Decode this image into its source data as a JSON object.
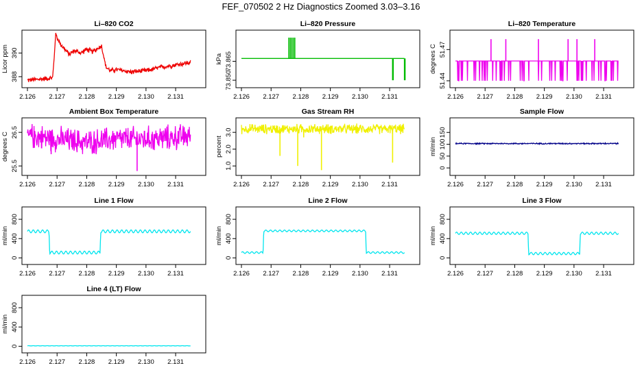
{
  "title": "FEF_070502  2 Hz Diagnostics Zoomed 3.03–3.16",
  "colors": {
    "red": "#ee0000",
    "green": "#00bb00",
    "magenta": "#ee00ee",
    "yellow": "#f0f000",
    "navy": "#000088",
    "cyan": "#00e5ee"
  },
  "chart_data": [
    {
      "id": "co2",
      "type": "line",
      "title": "Li–820 CO2",
      "ylabel": "Licor ppm",
      "xlim": [
        2.126,
        2.1316
      ],
      "ylim": [
        387.3,
        391.7
      ],
      "x_ticks": [
        "2.126",
        "2.127",
        "2.128",
        "2.129",
        "2.130",
        "2.131"
      ],
      "x_tick_values": [
        2.126,
        2.127,
        2.128,
        2.129,
        2.13,
        2.131
      ],
      "y_ticks": [
        "388",
        "390"
      ],
      "y_tick_values": [
        388,
        390
      ],
      "series": [
        {
          "color": "red",
          "x": [
            2.126,
            2.1265,
            2.12685,
            2.1269,
            2.12695,
            2.1271,
            2.1274,
            2.1276,
            2.1278,
            2.128,
            2.1282,
            2.1285,
            2.12865,
            2.1288,
            2.129,
            2.1295,
            2.13,
            2.1305,
            2.131,
            2.1315
          ],
          "y": [
            387.7,
            387.8,
            387.9,
            389.5,
            391.6,
            390.8,
            389.9,
            390.2,
            390.0,
            390.3,
            390.1,
            390.6,
            388.8,
            388.5,
            388.6,
            388.4,
            388.5,
            388.8,
            389.0,
            389.2
          ],
          "noise": 0.25
        }
      ]
    },
    {
      "id": "pressure",
      "type": "line",
      "title": "Li–820 Pressure",
      "ylabel": "kPa",
      "xlim": [
        2.126,
        2.1316
      ],
      "ylim": [
        73.845,
        73.9
      ],
      "x_ticks": [
        "2.126",
        "2.127",
        "2.128",
        "2.129",
        "2.130",
        "2.131"
      ],
      "x_tick_values": [
        2.126,
        2.127,
        2.128,
        2.129,
        2.13,
        2.131
      ],
      "y_ticks": [
        "73.850",
        "73.865"
      ],
      "y_tick_values": [
        73.85,
        73.87
      ],
      "series": [
        {
          "color": "green",
          "x": [
            2.126,
            2.1315
          ],
          "y": [
            73.873,
            73.873
          ],
          "noise": 0,
          "spikes": [
            {
              "x": 2.1276,
              "y": 73.895
            },
            {
              "x": 2.12765,
              "y": 73.895
            },
            {
              "x": 2.1277,
              "y": 73.895
            },
            {
              "x": 2.12775,
              "y": 73.895
            },
            {
              "x": 2.1278,
              "y": 73.895
            },
            {
              "x": 2.1311,
              "y": 73.85
            },
            {
              "x": 2.13112,
              "y": 73.85
            },
            {
              "x": 2.1315,
              "y": 73.85
            },
            {
              "x": 2.13152,
              "y": 73.85
            }
          ]
        }
      ]
    },
    {
      "id": "licor-temp",
      "type": "line",
      "title": "Li–820 Temperature",
      "ylabel": "degrees C",
      "xlim": [
        2.126,
        2.1316
      ],
      "ylim": [
        51.436,
        51.486
      ],
      "x_ticks": [
        "2.126",
        "2.127",
        "2.128",
        "2.129",
        "2.130",
        "2.131"
      ],
      "x_tick_values": [
        2.126,
        2.127,
        2.128,
        2.129,
        2.13,
        2.131
      ],
      "y_ticks": [
        "51.44",
        "51.47"
      ],
      "y_tick_values": [
        51.44,
        51.47
      ],
      "series": [
        {
          "color": "magenta",
          "x": [
            2.126,
            2.1315
          ],
          "y": [
            51.459,
            51.459
          ],
          "noise": 0,
          "dropouts": 60,
          "drop_to": 51.44,
          "spikes_up": [
            2.1272,
            2.1277,
            2.1288,
            2.1298,
            2.1301,
            2.1307
          ],
          "spike_to": 51.48
        }
      ]
    },
    {
      "id": "box-temp",
      "type": "line",
      "title": "Ambient Box Temperature",
      "ylabel": "degrees C",
      "xlim": [
        2.126,
        2.1316
      ],
      "ylim": [
        25.3,
        26.85
      ],
      "x_ticks": [
        "2.126",
        "2.127",
        "2.128",
        "2.129",
        "2.130",
        "2.131"
      ],
      "x_tick_values": [
        2.126,
        2.127,
        2.128,
        2.129,
        2.13,
        2.131
      ],
      "y_ticks": [
        "25.5",
        "26.5"
      ],
      "y_tick_values": [
        25.5,
        26.5
      ],
      "series": [
        {
          "color": "magenta",
          "x": [
            2.126,
            2.127,
            2.128,
            2.129,
            2.13,
            2.131,
            2.1315
          ],
          "y": [
            26.4,
            26.3,
            26.2,
            26.3,
            26.3,
            26.35,
            26.4
          ],
          "noise": 0.45,
          "spikes": [
            {
              "x": 2.1297,
              "y": 25.35
            },
            {
              "x": 2.1268,
              "y": 25.85
            }
          ]
        }
      ]
    },
    {
      "id": "rh",
      "type": "line",
      "title": "Gas Stream RH",
      "ylabel": "percent",
      "xlim": [
        2.126,
        2.1316
      ],
      "ylim": [
        0.6,
        3.7
      ],
      "x_ticks": [
        "2.126",
        "2.127",
        "2.128",
        "2.129",
        "2.130",
        "2.131"
      ],
      "x_tick_values": [
        2.126,
        2.127,
        2.128,
        2.129,
        2.13,
        2.131
      ],
      "y_ticks": [
        "1.0",
        "2.0",
        "3.0"
      ],
      "y_tick_values": [
        1.0,
        2.0,
        3.0
      ],
      "series": [
        {
          "color": "yellow",
          "x": [
            2.126,
            2.1315
          ],
          "y": [
            3.2,
            3.2
          ],
          "noise": 0.35,
          "spikes": [
            {
              "x": 2.1273,
              "y": 1.6
            },
            {
              "x": 2.1279,
              "y": 1.0
            },
            {
              "x": 2.1287,
              "y": 0.75
            },
            {
              "x": 2.1311,
              "y": 1.2
            },
            {
              "x": 2.1281,
              "y": 2.7
            }
          ]
        }
      ]
    },
    {
      "id": "sample-flow",
      "type": "line",
      "title": "Sample Flow",
      "ylabel": "ml/min",
      "xlim": [
        2.126,
        2.1316
      ],
      "ylim": [
        -20,
        200
      ],
      "x_ticks": [
        "2.126",
        "2.127",
        "2.128",
        "2.129",
        "2.130",
        "2.131"
      ],
      "x_tick_values": [
        2.126,
        2.127,
        2.128,
        2.129,
        2.13,
        2.131
      ],
      "y_ticks": [
        "0",
        "50",
        "100",
        "150"
      ],
      "y_tick_values": [
        0,
        50,
        100,
        150
      ],
      "series": [
        {
          "color": "navy",
          "x": [
            2.126,
            2.1315
          ],
          "y": [
            103,
            103
          ],
          "noise": 3
        }
      ]
    },
    {
      "id": "line1",
      "type": "line",
      "title": "Line 1 Flow",
      "ylabel": "ml/min",
      "xlim": [
        2.126,
        2.1316
      ],
      "ylim": [
        -80,
        1000
      ],
      "x_ticks": [
        "2.126",
        "2.127",
        "2.128",
        "2.129",
        "2.130",
        "2.131"
      ],
      "x_tick_values": [
        2.126,
        2.127,
        2.128,
        2.129,
        2.13,
        2.131
      ],
      "y_ticks": [
        "0",
        "400",
        "800"
      ],
      "y_tick_values": [
        0,
        400,
        800
      ],
      "series": [
        {
          "color": "cyan",
          "x": [
            2.126,
            2.12673,
            2.12675,
            2.12845,
            2.12847,
            2.1315
          ],
          "y": [
            550,
            550,
            110,
            110,
            550,
            550
          ],
          "wave": 30
        }
      ]
    },
    {
      "id": "line2",
      "type": "line",
      "title": "Line 2 Flow",
      "ylabel": "ml/min",
      "xlim": [
        2.126,
        2.1316
      ],
      "ylim": [
        -80,
        1000
      ],
      "x_ticks": [
        "2.126",
        "2.127",
        "2.128",
        "2.129",
        "2.130",
        "2.131"
      ],
      "x_tick_values": [
        2.126,
        2.127,
        2.128,
        2.129,
        2.13,
        2.131
      ],
      "y_ticks": [
        "0",
        "400",
        "800"
      ],
      "y_tick_values": [
        0,
        400,
        800
      ],
      "series": [
        {
          "color": "cyan",
          "x": [
            2.126,
            2.12673,
            2.12675,
            2.13019,
            2.13021,
            2.1315
          ],
          "y": [
            110,
            110,
            560,
            560,
            110,
            110
          ],
          "wave": 18
        }
      ]
    },
    {
      "id": "line3",
      "type": "line",
      "title": "Line 3 Flow",
      "ylabel": "ml/min",
      "xlim": [
        2.126,
        2.1316
      ],
      "ylim": [
        -80,
        1000
      ],
      "x_ticks": [
        "2.126",
        "2.127",
        "2.128",
        "2.129",
        "2.130",
        "2.131"
      ],
      "x_tick_values": [
        2.126,
        2.127,
        2.128,
        2.129,
        2.13,
        2.131
      ],
      "y_ticks": [
        "0",
        "400",
        "800"
      ],
      "y_tick_values": [
        0,
        400,
        800
      ],
      "series": [
        {
          "color": "cyan",
          "x": [
            2.126,
            2.12845,
            2.12847,
            2.13019,
            2.13021,
            2.1315
          ],
          "y": [
            510,
            510,
            90,
            90,
            510,
            510
          ],
          "wave": 25
        }
      ]
    },
    {
      "id": "line4",
      "type": "line",
      "title": "Line 4 (LT) Flow",
      "ylabel": "ml/min",
      "xlim": [
        2.126,
        2.1316
      ],
      "ylim": [
        -80,
        1000
      ],
      "x_ticks": [
        "2.126",
        "2.127",
        "2.128",
        "2.129",
        "2.130",
        "2.131"
      ],
      "x_tick_values": [
        2.126,
        2.127,
        2.128,
        2.129,
        2.13,
        2.131
      ],
      "y_ticks": [
        "0",
        "400",
        "800"
      ],
      "y_tick_values": [
        0,
        400,
        800
      ],
      "series": [
        {
          "color": "cyan",
          "x": [
            2.126,
            2.1315
          ],
          "y": [
            10,
            10
          ],
          "wave": 3
        }
      ]
    }
  ]
}
